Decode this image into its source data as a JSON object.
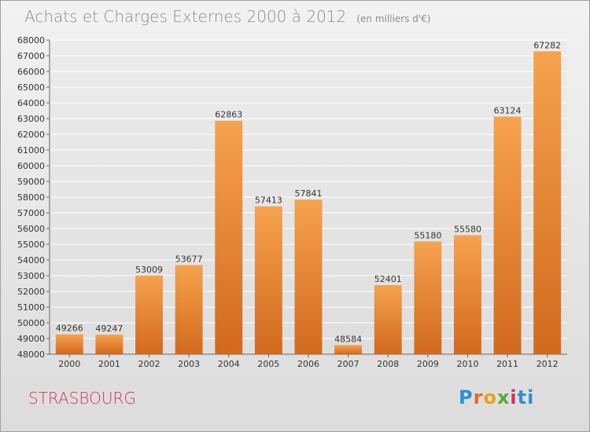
{
  "header": {
    "title": "Achats et Charges Externes 2000 à 2012",
    "subtitle": "(en milliers d'€)"
  },
  "footer": {
    "city": "STRASBOURG",
    "brand": "Proxiti",
    "brand_letters": [
      "P",
      "r",
      "o",
      "x",
      "i",
      "ti"
    ]
  },
  "colors": {
    "bar_top": "#f6a24e",
    "bar_bottom": "#d2691e",
    "title": "#8c8c8c",
    "city": "#d2345a"
  },
  "chart_data": {
    "type": "bar",
    "title": "Achats et Charges Externes 2000 à 2012",
    "subtitle": "(en milliers d'€)",
    "categories": [
      "2000",
      "2001",
      "2002",
      "2003",
      "2004",
      "2005",
      "2006",
      "2007",
      "2008",
      "2009",
      "2010",
      "2011",
      "2012"
    ],
    "values": [
      49266,
      49247,
      53009,
      53677,
      62863,
      57413,
      57841,
      48584,
      52401,
      55180,
      55580,
      63124,
      67282
    ],
    "ylim": [
      48000,
      68000
    ],
    "ytick_step": 1000,
    "grid": true,
    "legend": "none"
  }
}
